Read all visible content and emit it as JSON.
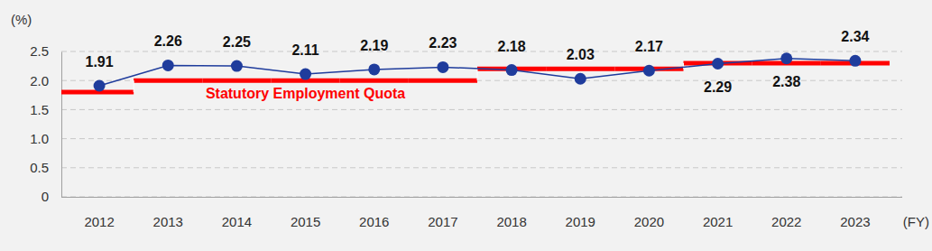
{
  "chart_data": {
    "type": "line",
    "x_label": "(FY)",
    "y_label": "(%)",
    "categories": [
      "2012",
      "2013",
      "2014",
      "2015",
      "2016",
      "2017",
      "2018",
      "2019",
      "2020",
      "2021",
      "2022",
      "2023"
    ],
    "series": [
      {
        "values": [
          1.91,
          2.26,
          2.25,
          2.11,
          2.19,
          2.23,
          2.18,
          2.03,
          2.17,
          2.29,
          2.38,
          2.34
        ],
        "color": "#1f3c9c",
        "marker": "circle",
        "line_style": "solid"
      },
      {
        "name": "Statutory Employment Quota",
        "type": "step",
        "values": [
          1.8,
          2.0,
          2.0,
          2.0,
          2.0,
          2.0,
          2.2,
          2.2,
          2.2,
          2.3,
          2.3,
          2.3
        ],
        "color": "#ff0000",
        "line_style": "solid"
      }
    ],
    "ylim": [
      0,
      2.5
    ],
    "yticks": [
      0,
      0.5,
      {
        "value": 1,
        "label": "1.0"
      },
      1.5,
      {
        "value": 2,
        "label": "2.0"
      },
      2.5
    ],
    "grid": true,
    "data_labels": true
  }
}
